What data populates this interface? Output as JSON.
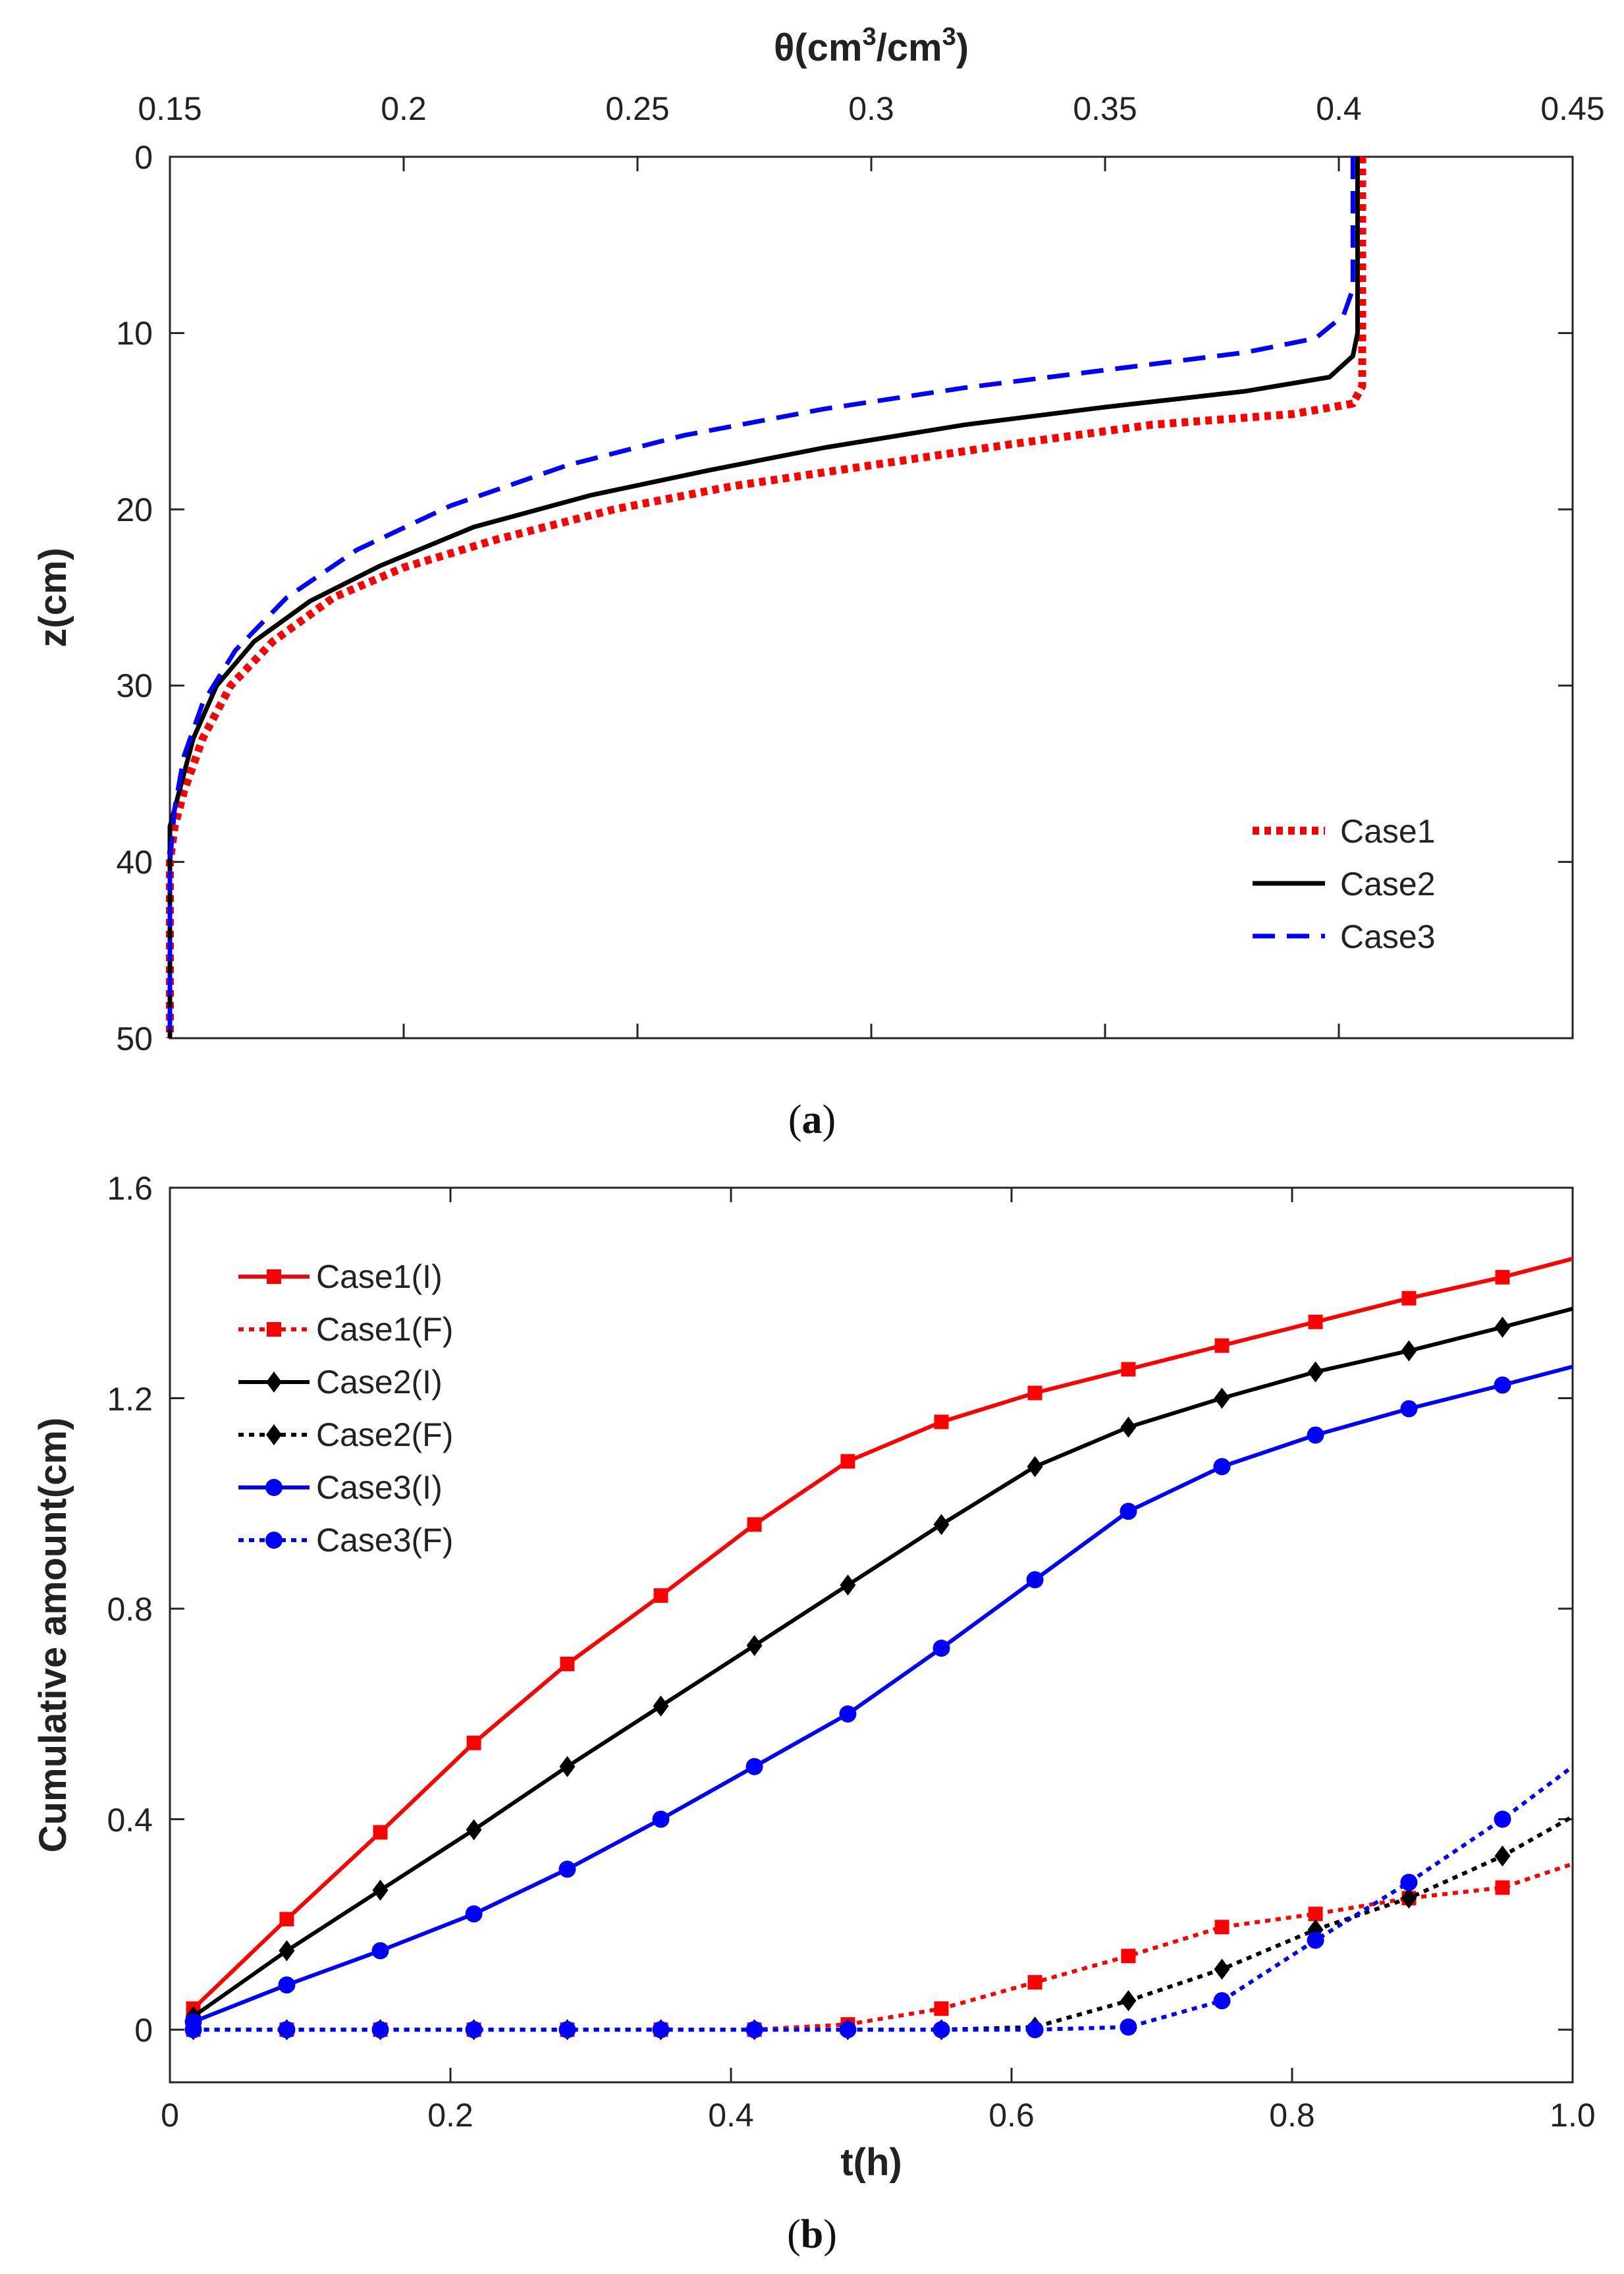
{
  "chart_data": [
    {
      "type": "line",
      "panel_label": "a",
      "xlabel_base": "θ(cm",
      "xlabel_sup": "3",
      "xlabel_mid": "/cm",
      "xlabel_sup2": "3",
      "xlabel_end": ")",
      "ylabel": "z(cm)",
      "xlim": [
        0.15,
        0.45
      ],
      "ylim": [
        0,
        50
      ],
      "y_reversed": true,
      "x_axis_position": "top",
      "xticks": [
        0.15,
        0.2,
        0.25,
        0.3,
        0.35,
        0.4,
        0.45
      ],
      "xtick_labels": [
        "0.15",
        "0.2",
        "0.25",
        "0.3",
        "0.35",
        "0.4",
        "0.45"
      ],
      "yticks": [
        0,
        10,
        20,
        30,
        40,
        50
      ],
      "ytick_labels": [
        "0",
        "10",
        "20",
        "30",
        "40",
        "50"
      ],
      "grid": false,
      "legend_position": "bottom-right",
      "series": [
        {
          "name": "Case1",
          "color": "#ff0000",
          "style": "dotted",
          "points": [
            [
              0.405,
              0
            ],
            [
              0.405,
              5
            ],
            [
              0.405,
              10
            ],
            [
              0.405,
              13
            ],
            [
              0.403,
              14
            ],
            [
              0.39,
              14.6
            ],
            [
              0.36,
              15.2
            ],
            [
              0.33,
              16.3
            ],
            [
              0.3,
              17.5
            ],
            [
              0.27,
              18.7
            ],
            [
              0.245,
              20
            ],
            [
              0.22,
              21.7
            ],
            [
              0.2,
              23.3
            ],
            [
              0.185,
              25
            ],
            [
              0.172,
              27.5
            ],
            [
              0.163,
              30
            ],
            [
              0.157,
              33
            ],
            [
              0.153,
              36
            ],
            [
              0.151,
              38
            ],
            [
              0.15,
              40
            ],
            [
              0.15,
              45
            ],
            [
              0.15,
              50
            ]
          ]
        },
        {
          "name": "Case2",
          "color": "#000000",
          "style": "solid",
          "points": [
            [
              0.404,
              0
            ],
            [
              0.404,
              5
            ],
            [
              0.404,
              10
            ],
            [
              0.403,
              11.3
            ],
            [
              0.398,
              12.5
            ],
            [
              0.38,
              13.3
            ],
            [
              0.35,
              14.2
            ],
            [
              0.32,
              15.2
            ],
            [
              0.29,
              16.5
            ],
            [
              0.265,
              17.8
            ],
            [
              0.24,
              19.2
            ],
            [
              0.215,
              21
            ],
            [
              0.195,
              23.2
            ],
            [
              0.18,
              25.2
            ],
            [
              0.168,
              27.5
            ],
            [
              0.16,
              30
            ],
            [
              0.155,
              33
            ],
            [
              0.152,
              36
            ],
            [
              0.15,
              38
            ],
            [
              0.15,
              40
            ],
            [
              0.15,
              45
            ],
            [
              0.15,
              50
            ]
          ]
        },
        {
          "name": "Case3",
          "color": "#0000ff",
          "style": "dashed",
          "points": [
            [
              0.403,
              0
            ],
            [
              0.403,
              5
            ],
            [
              0.403,
              7.5
            ],
            [
              0.401,
              9
            ],
            [
              0.395,
              10.3
            ],
            [
              0.38,
              11.1
            ],
            [
              0.35,
              12.1
            ],
            [
              0.32,
              13.1
            ],
            [
              0.29,
              14.3
            ],
            [
              0.26,
              15.8
            ],
            [
              0.235,
              17.5
            ],
            [
              0.21,
              19.8
            ],
            [
              0.19,
              22.3
            ],
            [
              0.175,
              25
            ],
            [
              0.164,
              28
            ],
            [
              0.157,
              31
            ],
            [
              0.153,
              34
            ],
            [
              0.151,
              37
            ],
            [
              0.15,
              40
            ],
            [
              0.15,
              45
            ],
            [
              0.15,
              50
            ]
          ]
        }
      ]
    },
    {
      "type": "line",
      "panel_label": "b",
      "xlabel": "t(h)",
      "ylabel": "Cumulative amount(cm)",
      "xlim": [
        0,
        1.0
      ],
      "ylim": [
        -0.1,
        1.6
      ],
      "xticks": [
        0,
        0.2,
        0.4,
        0.6,
        0.8,
        1.0
      ],
      "xtick_labels": [
        "0",
        "0.2",
        "0.4",
        "0.6",
        "0.8",
        "1.0"
      ],
      "yticks": [
        0,
        0.4,
        0.8,
        1.2,
        1.6
      ],
      "ytick_labels": [
        "0",
        "0.4",
        "0.8",
        "1.2",
        "1.6"
      ],
      "grid": false,
      "legend_position": "top-left",
      "series": [
        {
          "name": "Case1(I)",
          "color": "#ff0000",
          "style": "solid",
          "marker": "square",
          "x": [
            0.0167,
            0.0833,
            0.15,
            0.2167,
            0.2833,
            0.35,
            0.4167,
            0.4833,
            0.55,
            0.6167,
            0.6833,
            0.75,
            0.8167,
            0.8833,
            0.95,
            1.0
          ],
          "y": [
            0.04,
            0.21,
            0.375,
            0.545,
            0.695,
            0.825,
            0.96,
            1.08,
            1.155,
            1.21,
            1.255,
            1.3,
            1.345,
            1.39,
            1.43,
            1.465
          ],
          "marker_count": 15
        },
        {
          "name": "Case1(F)",
          "color": "#ff0000",
          "style": "dotted",
          "marker": "square",
          "x": [
            0.0167,
            0.0833,
            0.15,
            0.2167,
            0.2833,
            0.35,
            0.4167,
            0.4833,
            0.55,
            0.6167,
            0.6833,
            0.75,
            0.8167,
            0.8833,
            0.95,
            1.0
          ],
          "y": [
            0,
            0,
            0,
            0,
            0,
            0,
            0,
            0.01,
            0.04,
            0.09,
            0.14,
            0.195,
            0.22,
            0.25,
            0.27,
            0.315
          ],
          "marker_count": 15
        },
        {
          "name": "Case2(I)",
          "color": "#000000",
          "style": "solid",
          "marker": "diamond",
          "x": [
            0.0167,
            0.0833,
            0.15,
            0.2167,
            0.2833,
            0.35,
            0.4167,
            0.4833,
            0.55,
            0.6167,
            0.6833,
            0.75,
            0.8167,
            0.8833,
            0.95,
            1.0
          ],
          "y": [
            0.025,
            0.15,
            0.265,
            0.38,
            0.5,
            0.615,
            0.73,
            0.845,
            0.96,
            1.07,
            1.145,
            1.2,
            1.25,
            1.29,
            1.335,
            1.37
          ],
          "marker_count": 15
        },
        {
          "name": "Case2(F)",
          "color": "#000000",
          "style": "dotted",
          "marker": "diamond",
          "x": [
            0.0167,
            0.0833,
            0.15,
            0.2167,
            0.2833,
            0.35,
            0.4167,
            0.4833,
            0.55,
            0.6167,
            0.6833,
            0.75,
            0.8167,
            0.8833,
            0.95,
            1.0
          ],
          "y": [
            0,
            0,
            0,
            0,
            0,
            0,
            0,
            0,
            0,
            0.005,
            0.055,
            0.115,
            0.19,
            0.25,
            0.33,
            0.405
          ],
          "marker_count": 15
        },
        {
          "name": "Case3(I)",
          "color": "#0000ff",
          "style": "solid",
          "marker": "circle",
          "x": [
            0.0167,
            0.0833,
            0.15,
            0.2167,
            0.2833,
            0.35,
            0.4167,
            0.4833,
            0.55,
            0.6167,
            0.6833,
            0.75,
            0.8167,
            0.8833,
            0.95,
            1.0
          ],
          "y": [
            0.015,
            0.085,
            0.15,
            0.22,
            0.305,
            0.4,
            0.5,
            0.6,
            0.725,
            0.855,
            0.985,
            1.07,
            1.13,
            1.18,
            1.225,
            1.26
          ],
          "marker_count": 15
        },
        {
          "name": "Case3(F)",
          "color": "#0000ff",
          "style": "dotted",
          "marker": "circle",
          "x": [
            0.0167,
            0.0833,
            0.15,
            0.2167,
            0.2833,
            0.35,
            0.4167,
            0.4833,
            0.55,
            0.6167,
            0.6833,
            0.75,
            0.8167,
            0.8833,
            0.95,
            1.0
          ],
          "y": [
            0,
            0,
            0,
            0,
            0,
            0,
            0,
            0,
            0,
            0,
            0.005,
            0.055,
            0.17,
            0.28,
            0.4,
            0.5
          ],
          "marker_count": 15
        }
      ]
    }
  ]
}
